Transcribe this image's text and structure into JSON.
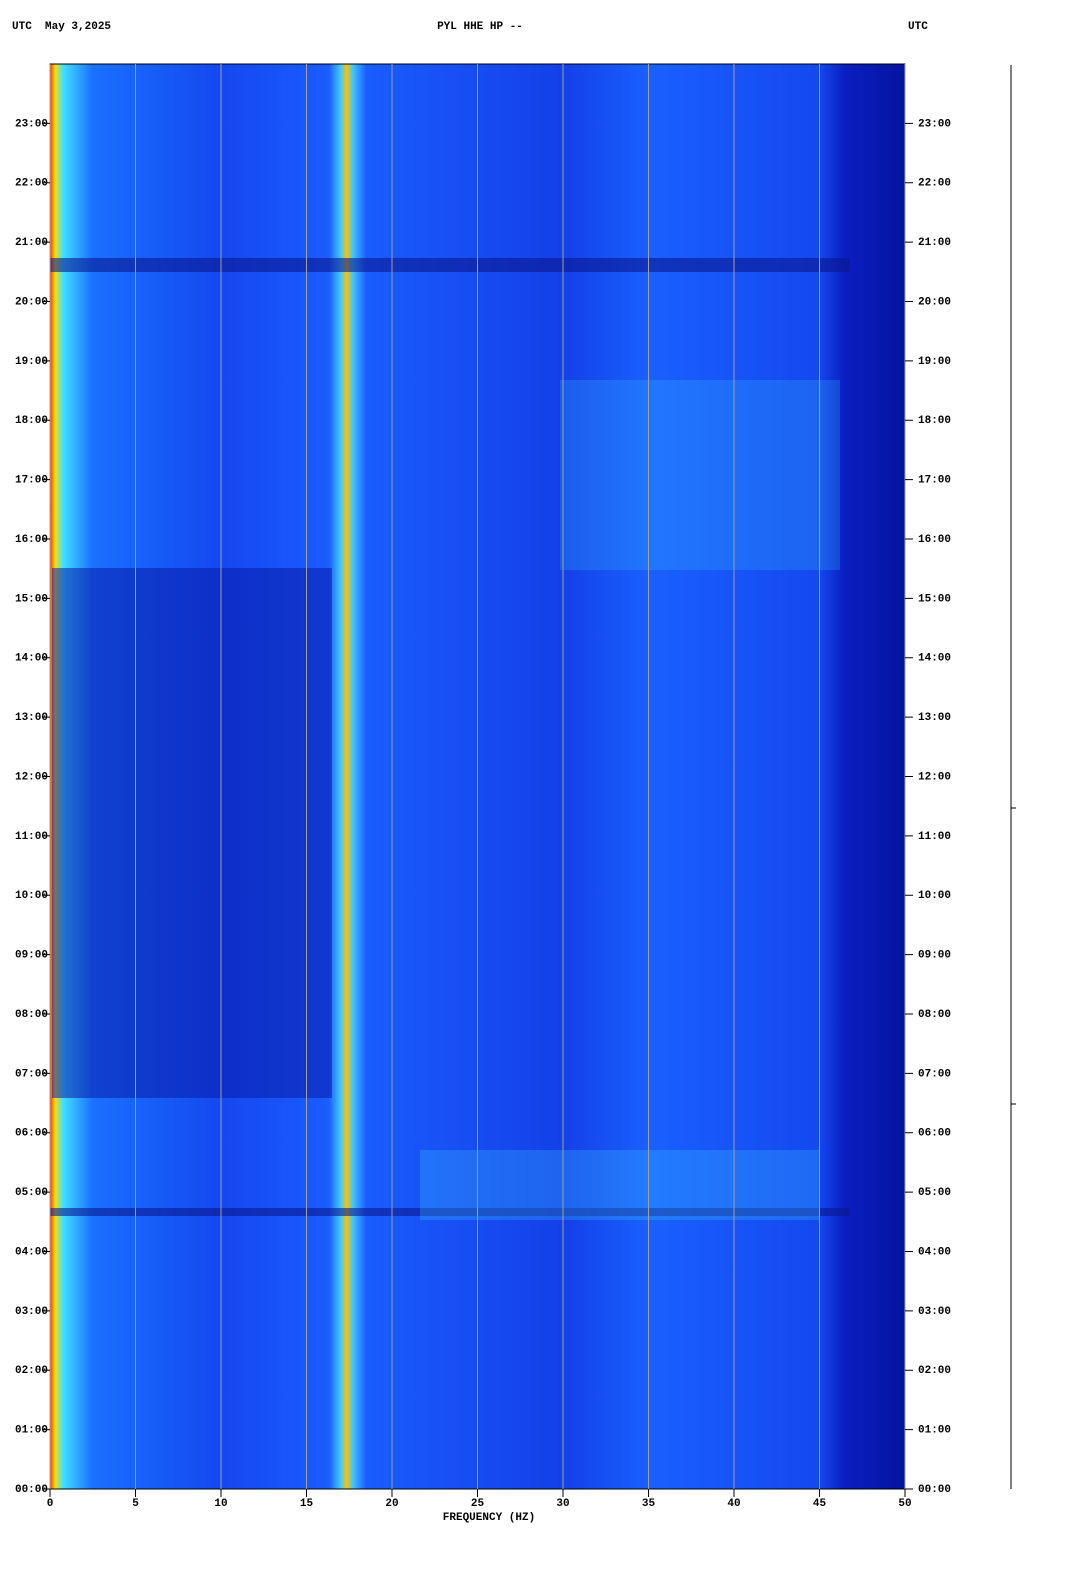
{
  "chart_data": {
    "type": "spectrogram",
    "title_left": "UTC  May 3,2025",
    "title": "PYL HHE HP --",
    "title_right": "UTC",
    "xlabel": "FREQUENCY (HZ)",
    "xlim": [
      0,
      50
    ],
    "xticks": [
      0,
      5,
      10,
      15,
      20,
      25,
      30,
      35,
      40,
      45,
      50
    ],
    "ylim": [
      0,
      24
    ],
    "yticks": [
      {
        "value": 0,
        "label": "00:00"
      },
      {
        "value": 1,
        "label": "01:00"
      },
      {
        "value": 2,
        "label": "02:00"
      },
      {
        "value": 3,
        "label": "03:00"
      },
      {
        "value": 4,
        "label": "04:00"
      },
      {
        "value": 5,
        "label": "05:00"
      },
      {
        "value": 6,
        "label": "06:00"
      },
      {
        "value": 7,
        "label": "07:00"
      },
      {
        "value": 8,
        "label": "08:00"
      },
      {
        "value": 9,
        "label": "09:00"
      },
      {
        "value": 10,
        "label": "10:00"
      },
      {
        "value": 11,
        "label": "11:00"
      },
      {
        "value": 12,
        "label": "12:00"
      },
      {
        "value": 13,
        "label": "13:00"
      },
      {
        "value": 14,
        "label": "14:00"
      },
      {
        "value": 15,
        "label": "15:00"
      },
      {
        "value": 16,
        "label": "16:00"
      },
      {
        "value": 17,
        "label": "17:00"
      },
      {
        "value": 18,
        "label": "18:00"
      },
      {
        "value": 19,
        "label": "19:00"
      },
      {
        "value": 20,
        "label": "20:00"
      },
      {
        "value": 21,
        "label": "21:00"
      },
      {
        "value": 22,
        "label": "22:00"
      },
      {
        "value": 23,
        "label": "23:00"
      }
    ],
    "grid": true
  }
}
